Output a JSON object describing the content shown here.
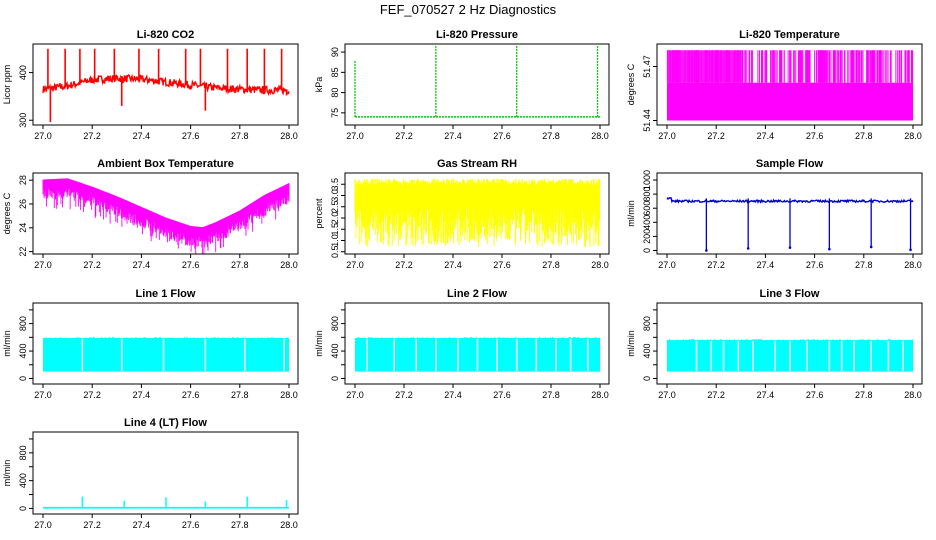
{
  "title": "FEF_070527  2 Hz Diagnostics",
  "x_ticks": [
    "27.0",
    "27.2",
    "27.4",
    "27.6",
    "27.8",
    "28.0"
  ],
  "chart_data": [
    {
      "type": "line",
      "title": "Li-820 CO2",
      "ylabel": "Licor ppm",
      "color": "#ff0000",
      "xlim": [
        27.0,
        28.0
      ],
      "ylim": [
        290,
        460
      ],
      "yticks": [
        300,
        400
      ],
      "ytick_labels": [
        "300",
        "400"
      ],
      "shape": "co2",
      "base_points": [
        [
          27.0,
          365
        ],
        [
          27.1,
          372
        ],
        [
          27.2,
          385
        ],
        [
          27.3,
          388
        ],
        [
          27.4,
          386
        ],
        [
          27.5,
          380
        ],
        [
          27.6,
          374
        ],
        [
          27.7,
          368
        ],
        [
          27.8,
          365
        ],
        [
          27.9,
          363
        ],
        [
          28.0,
          363
        ]
      ],
      "spikes": [
        [
          27.02,
          450
        ],
        [
          27.03,
          296
        ],
        [
          27.09,
          450
        ],
        [
          27.15,
          450
        ],
        [
          27.21,
          450
        ],
        [
          27.29,
          450
        ],
        [
          27.32,
          330
        ],
        [
          27.39,
          450
        ],
        [
          27.47,
          450
        ],
        [
          27.58,
          450
        ],
        [
          27.64,
          450
        ],
        [
          27.66,
          320
        ],
        [
          27.75,
          450
        ],
        [
          27.83,
          450
        ],
        [
          27.9,
          450
        ],
        [
          27.97,
          450
        ],
        [
          27.99,
          352
        ]
      ]
    },
    {
      "type": "line",
      "title": "Li-820 Pressure",
      "ylabel": "kPa",
      "color": "#00c800",
      "xlim": [
        27.0,
        28.0
      ],
      "ylim": [
        72,
        92
      ],
      "yticks": [
        75,
        80,
        85,
        90
      ],
      "ytick_labels": [
        "75",
        "80",
        "85",
        "90"
      ],
      "shape": "pressure",
      "baseline": 74,
      "spikes": [
        [
          27.0,
          88
        ],
        [
          27.33,
          91.5
        ],
        [
          27.66,
          91.5
        ],
        [
          27.99,
          91.5
        ]
      ]
    },
    {
      "type": "line",
      "title": "Li-820 Temperature",
      "ylabel": "degrees C",
      "color": "#ff00ff",
      "xlim": [
        27.0,
        28.0
      ],
      "ylim": [
        51.4375,
        51.4825
      ],
      "yticks": [
        51.44,
        51.47
      ],
      "ytick_labels": [
        "51.44",
        "51.47"
      ],
      "shape": "temp_li",
      "low": 51.44,
      "mid": 51.461,
      "high": 51.479
    },
    {
      "type": "line",
      "title": "Ambient Box Temperature",
      "ylabel": "degrees C",
      "color": "#ff00ff",
      "xlim": [
        27.0,
        28.0
      ],
      "ylim": [
        21.8,
        28.6
      ],
      "yticks": [
        22,
        24,
        26,
        28
      ],
      "ytick_labels": [
        "22",
        "24",
        "26",
        "28"
      ],
      "shape": "ambient",
      "upper": [
        [
          27.0,
          27.9
        ],
        [
          27.1,
          28.0
        ],
        [
          27.2,
          27.3
        ],
        [
          27.3,
          26.5
        ],
        [
          27.4,
          25.6
        ],
        [
          27.5,
          24.7
        ],
        [
          27.6,
          24.0
        ],
        [
          27.65,
          23.9
        ],
        [
          27.7,
          24.3
        ],
        [
          27.8,
          25.3
        ],
        [
          27.9,
          26.6
        ],
        [
          28.0,
          27.6
        ]
      ],
      "depth": 1.6
    },
    {
      "type": "line",
      "title": "Gas Stream RH",
      "ylabel": "percent",
      "color": "#ffff00",
      "xlim": [
        27.0,
        28.0
      ],
      "ylim": [
        0.4,
        4.0
      ],
      "yticks": [
        0.5,
        1.0,
        1.5,
        2.0,
        2.5,
        3.0,
        3.5
      ],
      "ytick_labels": [
        "0.5",
        "1.0",
        "1.5",
        "2.0",
        "2.5",
        "3.0",
        "3.5"
      ],
      "shape": "rh",
      "low": 0.7,
      "high": 3.75
    },
    {
      "type": "line",
      "title": "Sample Flow",
      "ylabel": "ml/min",
      "color": "#0000cd",
      "xlim": [
        27.0,
        28.0
      ],
      "ylim": [
        -50,
        1100
      ],
      "yticks": [
        0,
        200,
        400,
        600,
        800,
        1000
      ],
      "ytick_labels": [
        "0",
        "200",
        "400",
        "600",
        "800",
        "1000"
      ],
      "shape": "sample",
      "baseline": 700,
      "drops": [
        [
          27.16,
          0
        ],
        [
          27.33,
          30
        ],
        [
          27.5,
          40
        ],
        [
          27.66,
          20
        ],
        [
          27.83,
          50
        ],
        [
          27.99,
          10
        ]
      ]
    },
    {
      "type": "line",
      "title": "Line 1 Flow",
      "ylabel": "ml/min",
      "color": "#00ffff",
      "xlim": [
        27.0,
        28.0
      ],
      "ylim": [
        -80,
        1100
      ],
      "yticks": [
        0,
        200,
        400,
        600,
        800,
        1000
      ],
      "ytick_labels": [
        "0",
        "400",
        "800"
      ],
      "shape": "band",
      "low": 100,
      "high": 590,
      "gaps": [
        27.16,
        27.32,
        27.49,
        27.66,
        27.82,
        27.98
      ]
    },
    {
      "type": "line",
      "title": "Line 2 Flow",
      "ylabel": "ml/min",
      "color": "#00ffff",
      "xlim": [
        27.0,
        28.0
      ],
      "ylim": [
        -80,
        1100
      ],
      "yticks": [
        0,
        200,
        400,
        600,
        800,
        1000
      ],
      "ytick_labels": [
        "0",
        "400",
        "800"
      ],
      "shape": "band",
      "low": 100,
      "high": 590,
      "gaps": [
        27.05,
        27.16,
        27.25,
        27.33,
        27.42,
        27.5,
        27.58,
        27.66,
        27.74,
        27.82,
        27.88,
        27.95
      ]
    },
    {
      "type": "line",
      "title": "Line 3 Flow",
      "ylabel": "ml/min",
      "color": "#00ffff",
      "xlim": [
        27.0,
        28.0
      ],
      "ylim": [
        -80,
        1100
      ],
      "yticks": [
        0,
        200,
        400,
        600,
        800,
        1000
      ],
      "ytick_labels": [
        "0",
        "400",
        "800"
      ],
      "shape": "band",
      "low": 100,
      "high": 560,
      "gaps": [
        27.12,
        27.18,
        27.23,
        27.29,
        27.35,
        27.44,
        27.5,
        27.57,
        27.66,
        27.71,
        27.76,
        27.83,
        27.9,
        27.96
      ]
    },
    {
      "type": "line",
      "title": "Line 4 (LT) Flow",
      "ylabel": "ml/min",
      "color": "#00ffff",
      "xlim": [
        27.0,
        28.0
      ],
      "ylim": [
        -80,
        1100
      ],
      "yticks": [
        0,
        200,
        400,
        600,
        800,
        1000
      ],
      "ytick_labels": [
        "0",
        "400",
        "800"
      ],
      "shape": "spikes_flat",
      "baseline": 10,
      "spikes": [
        [
          27.16,
          170
        ],
        [
          27.33,
          110
        ],
        [
          27.5,
          160
        ],
        [
          27.66,
          100
        ],
        [
          27.83,
          170
        ],
        [
          27.99,
          120
        ]
      ]
    }
  ]
}
